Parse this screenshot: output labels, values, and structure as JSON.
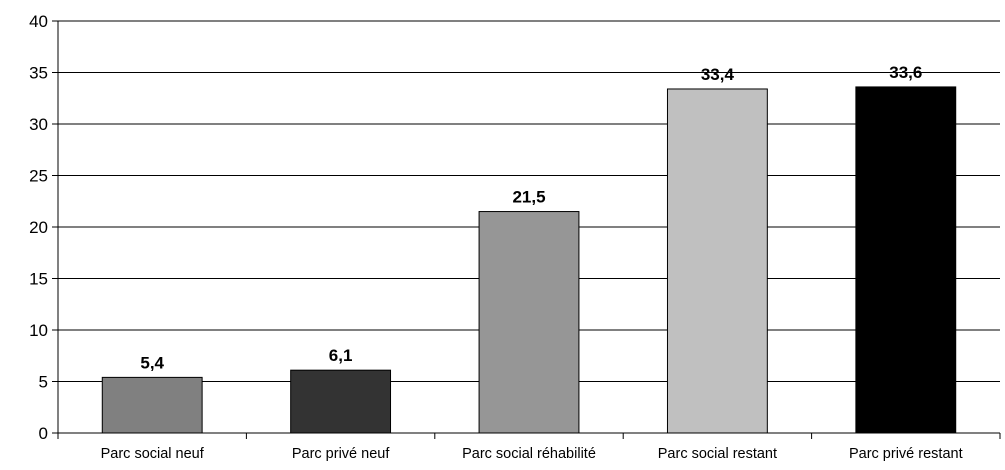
{
  "chart_data": {
    "type": "bar",
    "title": "",
    "xlabel": "",
    "ylabel": "",
    "categories": [
      "Parc social neuf",
      "Parc privé neuf",
      "Parc social réhabilité",
      "Parc social restant",
      "Parc privé restant"
    ],
    "values": [
      5.4,
      6.1,
      21.5,
      33.4,
      33.6
    ],
    "data_labels": [
      "5,4",
      "6,1",
      "21,5",
      "33,4",
      "33,6"
    ],
    "bar_colors": [
      "#808080",
      "#333333",
      "#969696",
      "#c0c0c0",
      "#000000"
    ],
    "ylim": [
      0,
      40
    ],
    "yticks": [
      0,
      5,
      10,
      15,
      20,
      25,
      30,
      35,
      40
    ],
    "grid": true,
    "legend": "none"
  }
}
